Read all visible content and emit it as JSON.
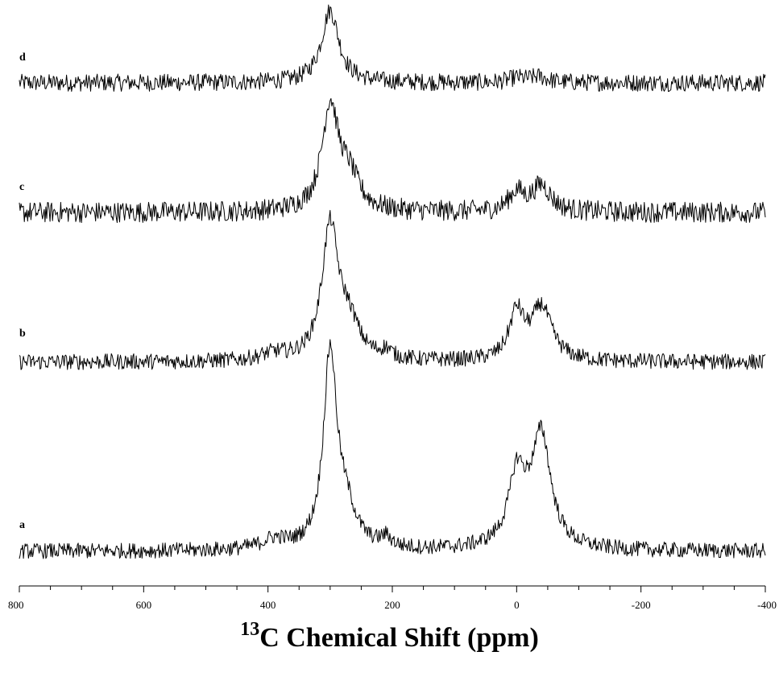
{
  "chart_data": {
    "type": "line",
    "xlabel_sup": "13",
    "xlabel_main": "C Chemical Shift (ppm)",
    "xlim": [
      800,
      -400
    ],
    "x_ticks": [
      800,
      600,
      400,
      200,
      0,
      -200,
      -400
    ],
    "x_tick_labels": [
      "800",
      "600",
      "400",
      "200",
      "0",
      "-200",
      "-400"
    ],
    "y_axis_shown": false,
    "grid": false,
    "legend": "none",
    "series": [
      {
        "name": "d",
        "peaks": [
          {
            "center": 300,
            "height": 1.0,
            "width": 17
          },
          {
            "center": 0,
            "height": 0.06,
            "width": 15
          },
          {
            "center": -35,
            "height": 0.08,
            "width": 18
          }
        ],
        "noise": 0.12
      },
      {
        "name": "c",
        "peaks": [
          {
            "center": 300,
            "height": 1.0,
            "width": 16
          },
          {
            "center": 270,
            "height": 0.3,
            "width": 20
          },
          {
            "center": 0,
            "height": 0.18,
            "width": 15
          },
          {
            "center": -40,
            "height": 0.25,
            "width": 18
          }
        ],
        "noise": 0.1
      },
      {
        "name": "b",
        "peaks": [
          {
            "center": 300,
            "height": 1.0,
            "width": 16
          },
          {
            "center": 270,
            "height": 0.25,
            "width": 20
          },
          {
            "center": 0,
            "height": 0.35,
            "width": 14
          },
          {
            "center": -40,
            "height": 0.4,
            "width": 20
          },
          {
            "center": 390,
            "height": 0.05,
            "width": 25
          },
          {
            "center": 210,
            "height": 0.06,
            "width": 10
          }
        ],
        "noise": 0.06
      },
      {
        "name": "a",
        "peaks": [
          {
            "center": 300,
            "height": 1.0,
            "width": 13
          },
          {
            "center": 275,
            "height": 0.18,
            "width": 20
          },
          {
            "center": 0,
            "height": 0.28,
            "width": 14
          },
          {
            "center": -40,
            "height": 0.55,
            "width": 18
          },
          {
            "center": -10,
            "height": 0.12,
            "width": 30
          },
          {
            "center": 390,
            "height": 0.05,
            "width": 25
          },
          {
            "center": 210,
            "height": 0.05,
            "width": 10
          }
        ],
        "noise": 0.04
      }
    ]
  }
}
